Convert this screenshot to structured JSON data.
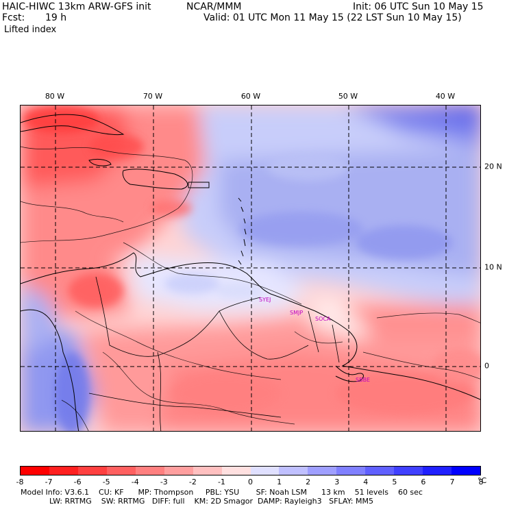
{
  "header": {
    "model": "HAIC-HIWC 13km ARW-GFS init",
    "org": "NCAR/MMM",
    "init": "Init: 06 UTC Sun 10 May 15",
    "fcst_label": "Fcst:",
    "fcst_value": "19 h",
    "valid": "Valid: 01 UTC Mon 11 May 15 (22 LST Sun 10 May 15)",
    "field": "Lifted index"
  },
  "map": {
    "longitude_labels": [
      "80 W",
      "70 W",
      "60 W",
      "50 W",
      "40 W"
    ],
    "latitude_labels": [
      "20 N",
      "10 N",
      "0"
    ],
    "stations": [
      "SYEJ",
      "SMJP",
      "SOCA",
      "SBBE"
    ]
  },
  "colorbar": {
    "colors": [
      "#ff0000",
      "#ff2020",
      "#ff4040",
      "#ff6060",
      "#ff8080",
      "#ff9f9f",
      "#ffc0c0",
      "#ffe0e0",
      "#e0e0ff",
      "#c0c0ff",
      "#9f9fff",
      "#8080ff",
      "#6060ff",
      "#4040ff",
      "#2020ff",
      "#0000ff"
    ],
    "labels": [
      "-8",
      "-7",
      "-6",
      "-5",
      "-4",
      "-3",
      "-2",
      "-1",
      "0",
      "1",
      "2",
      "3",
      "4",
      "5",
      "6",
      "7",
      "8"
    ],
    "unit": "°C"
  },
  "footer": {
    "line1": "Model Info: V3.6.1    CU: KF      MP: Thompson     PBL: YSU       SF: Noah LSM      13 km    51 levels    60 sec",
    "line2": "            LW: RRTMG    SW: RRTMG   DIFF: full    KM: 2D Smagor  DAMP: Rayleigh3   SFLAY: MM5"
  }
}
